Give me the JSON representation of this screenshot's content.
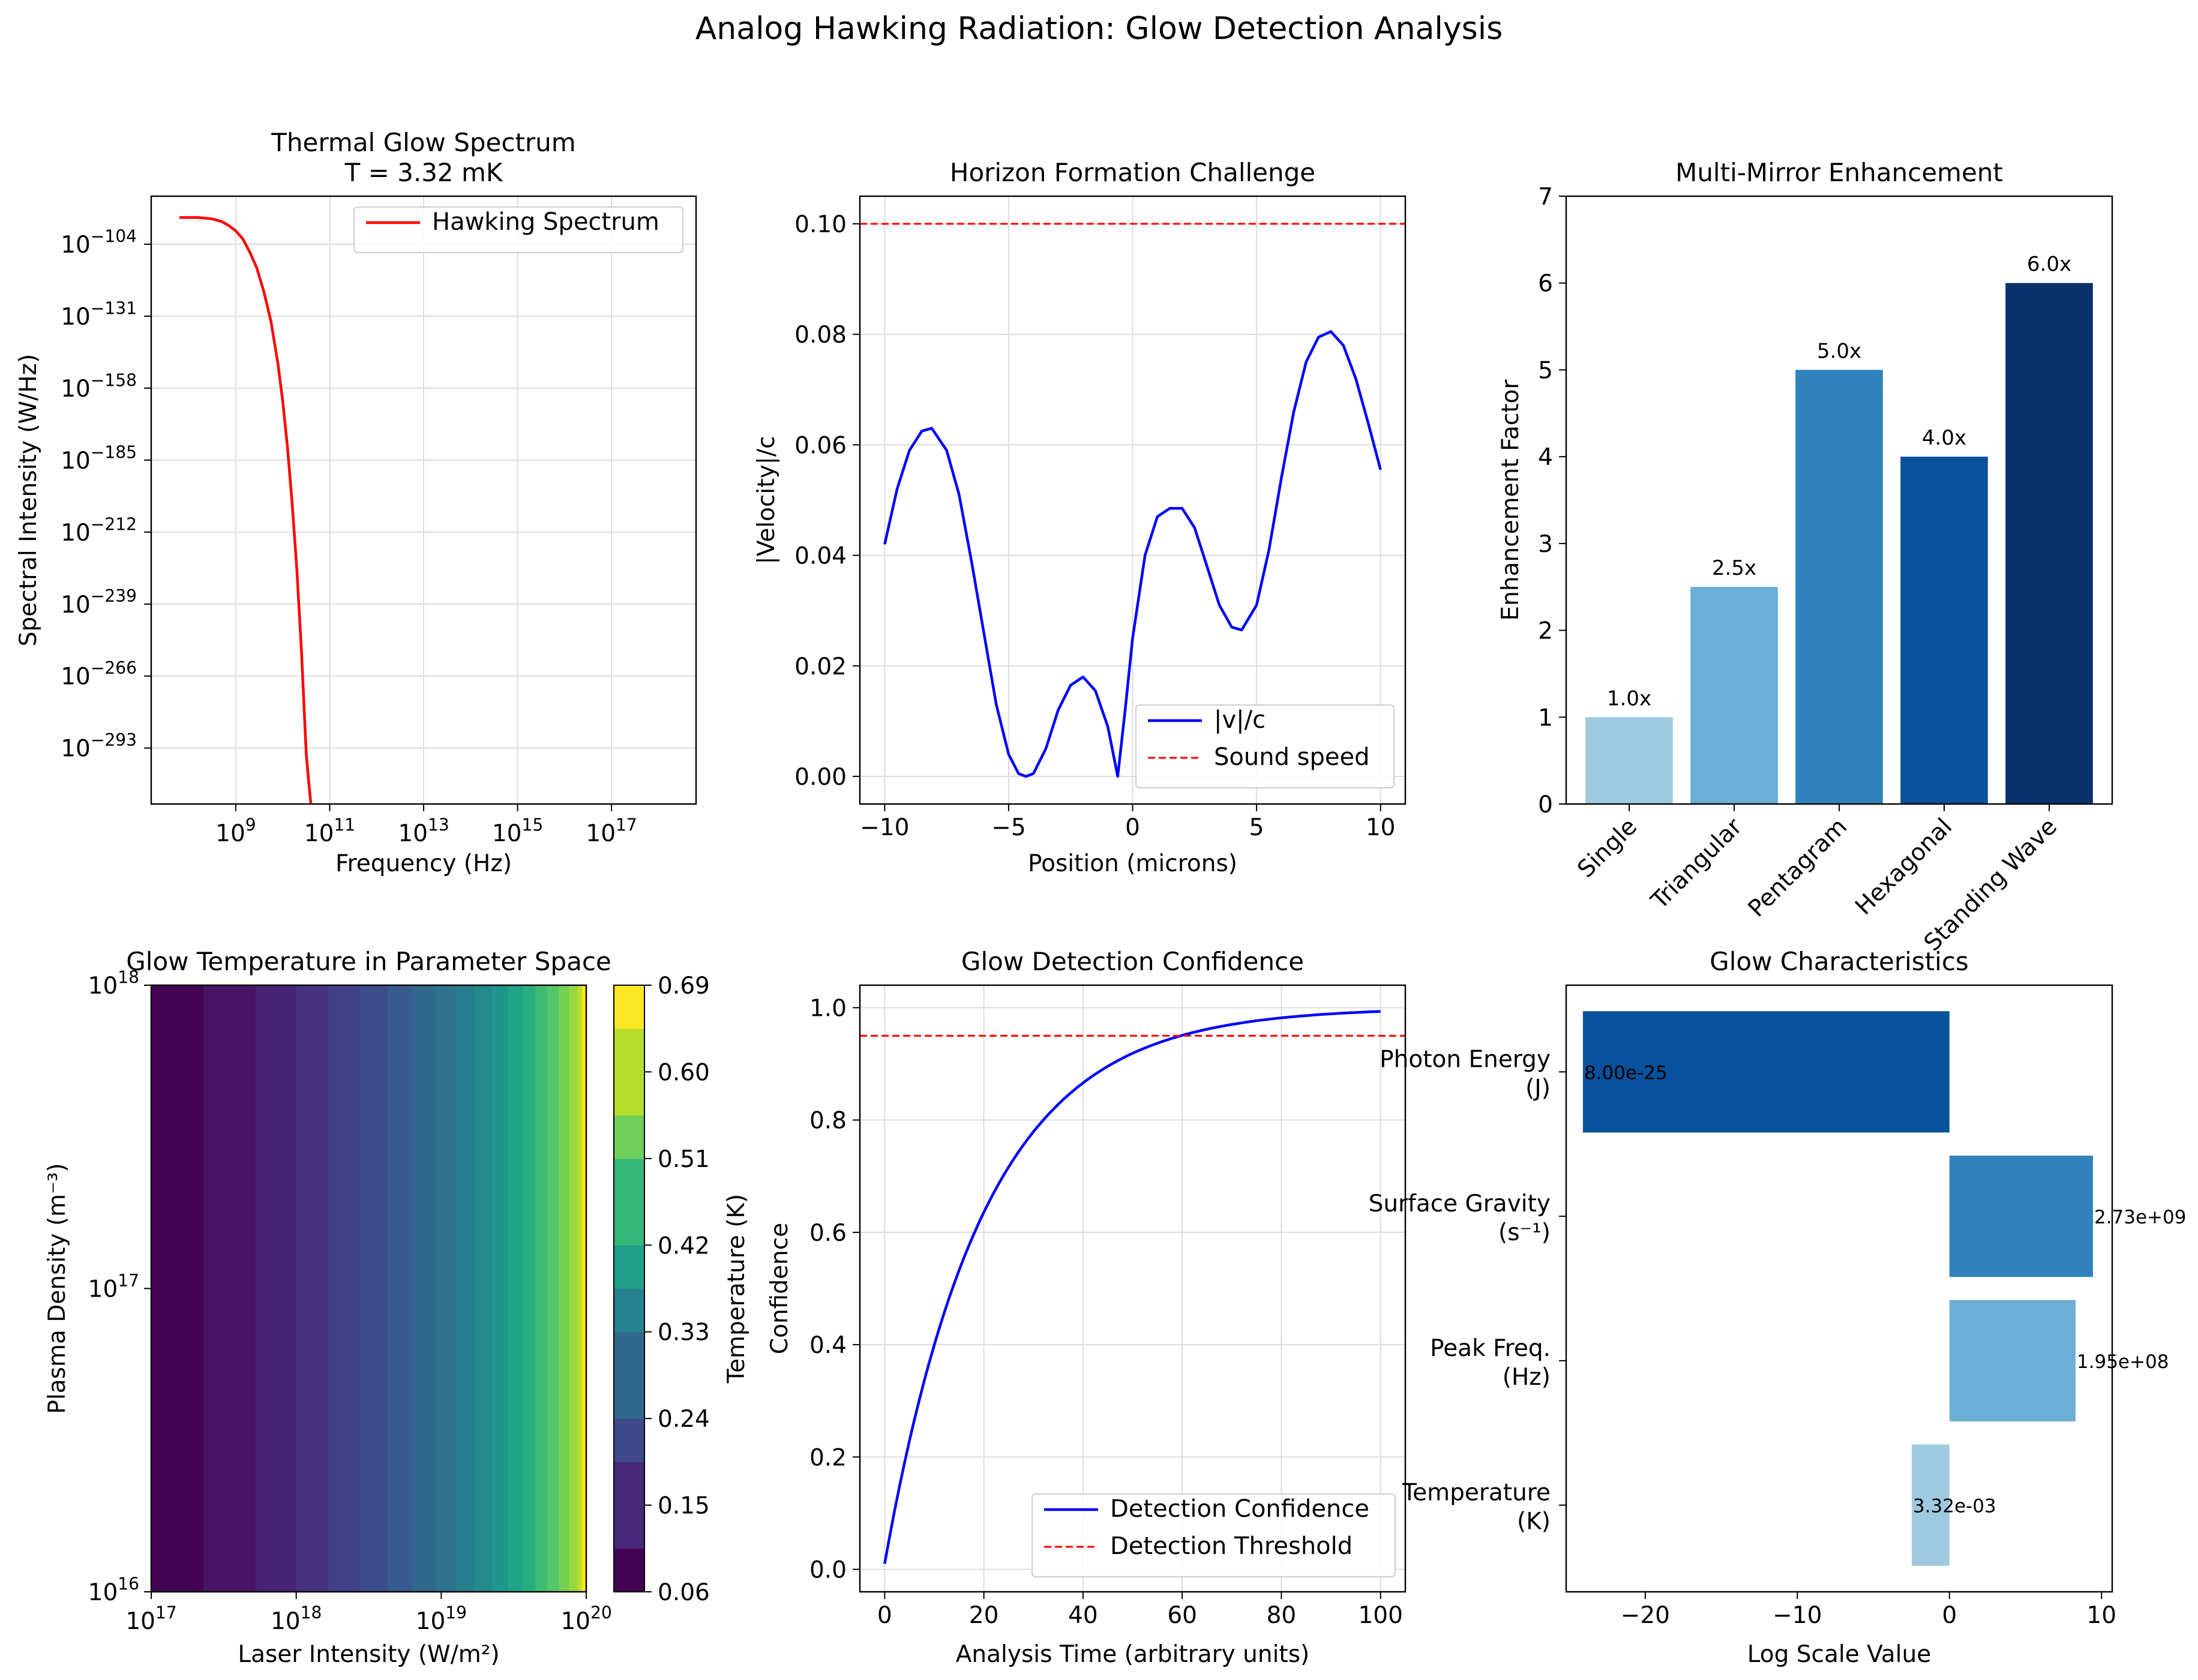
{
  "figure": {
    "suptitle": "Analog Hawking Radiation: Glow Detection Analysis"
  },
  "chart_data": [
    {
      "id": "spectrum",
      "type": "line",
      "title": "Thermal Glow Spectrum",
      "subtitle": "T = 3.32 mK",
      "xlabel": "Frequency (Hz)",
      "ylabel": "Spectral Intensity (W/Hz)",
      "xscale": "log",
      "yscale": "log",
      "xlim_log10": [
        7.2,
        18.8
      ],
      "ylim_log10": [
        -314,
        -86
      ],
      "x_ticks": [
        {
          "base": "10",
          "exp": "9",
          "v": 9
        },
        {
          "base": "10",
          "exp": "11",
          "v": 11
        },
        {
          "base": "10",
          "exp": "13",
          "v": 13
        },
        {
          "base": "10",
          "exp": "15",
          "v": 15
        },
        {
          "base": "10",
          "exp": "17",
          "v": 17
        }
      ],
      "y_ticks": [
        {
          "base": "10",
          "exp": "−104",
          "v": -104
        },
        {
          "base": "10",
          "exp": "−131",
          "v": -131
        },
        {
          "base": "10",
          "exp": "−158",
          "v": -158
        },
        {
          "base": "10",
          "exp": "−185",
          "v": -185
        },
        {
          "base": "10",
          "exp": "−212",
          "v": -212
        },
        {
          "base": "10",
          "exp": "−239",
          "v": -239
        },
        {
          "base": "10",
          "exp": "−266",
          "v": -266
        },
        {
          "base": "10",
          "exp": "−293",
          "v": -293
        }
      ],
      "grid": true,
      "legend": "upper right",
      "series": [
        {
          "name": "Hawking Spectrum",
          "color": "#ff0000",
          "log10_x": [
            7.8,
            8.2,
            8.5,
            8.7,
            8.85,
            9.0,
            9.15,
            9.3,
            9.45,
            9.6,
            9.75,
            9.9,
            10.0,
            10.1,
            10.2,
            10.3,
            10.4,
            10.5,
            10.55,
            10.6
          ],
          "log10_y": [
            -94,
            -94,
            -94.5,
            -95.5,
            -97,
            -99,
            -102,
            -107,
            -113,
            -122,
            -133,
            -149,
            -163,
            -180,
            -201,
            -226,
            -257,
            -295,
            -305,
            -314
          ]
        }
      ]
    },
    {
      "id": "horizon",
      "type": "line",
      "title": "Horizon Formation Challenge",
      "xlabel": "Position (microns)",
      "ylabel": "|Velocity|/c",
      "xlim": [
        -11,
        11
      ],
      "ylim": [
        -0.005,
        0.105
      ],
      "x_ticks": [
        {
          "label": "−10",
          "v": -10
        },
        {
          "label": "−5",
          "v": -5
        },
        {
          "label": "0",
          "v": 0
        },
        {
          "label": "5",
          "v": 5
        },
        {
          "label": "10",
          "v": 10
        }
      ],
      "y_ticks": [
        {
          "label": "0.00",
          "v": 0
        },
        {
          "label": "0.02",
          "v": 0.02
        },
        {
          "label": "0.04",
          "v": 0.04
        },
        {
          "label": "0.06",
          "v": 0.06
        },
        {
          "label": "0.08",
          "v": 0.08
        },
        {
          "label": "0.10",
          "v": 0.1
        }
      ],
      "grid": true,
      "legend": "lower right",
      "series": [
        {
          "name": "|v|/c",
          "color": "#0000ff",
          "style": "solid",
          "x": [
            -10,
            -9.5,
            -9,
            -8.5,
            -8.1,
            -7.5,
            -7,
            -6.5,
            -6,
            -5.5,
            -5,
            -4.6,
            -4.3,
            -4.0,
            -3.5,
            -3,
            -2.5,
            -2,
            -1.5,
            -1.0,
            -0.6,
            -0.3,
            0,
            0.5,
            1,
            1.5,
            2,
            2.5,
            3,
            3.5,
            4,
            4.4,
            5,
            5.5,
            6,
            6.5,
            7,
            7.5,
            8,
            8.5,
            9,
            9.5,
            10
          ],
          "y": [
            0.042,
            0.052,
            0.059,
            0.0625,
            0.063,
            0.059,
            0.051,
            0.039,
            0.026,
            0.013,
            0.004,
            0.0005,
            0.0,
            0.0005,
            0.005,
            0.012,
            0.0165,
            0.018,
            0.0155,
            0.009,
            0.0,
            0.012,
            0.025,
            0.04,
            0.047,
            0.0485,
            0.0485,
            0.045,
            0.038,
            0.031,
            0.027,
            0.0265,
            0.031,
            0.041,
            0.054,
            0.066,
            0.075,
            0.0795,
            0.0805,
            0.078,
            0.072,
            0.064,
            0.0555
          ]
        },
        {
          "name": "Sound speed",
          "color": "#ff0000",
          "style": "dashed",
          "hline": 0.1
        }
      ]
    },
    {
      "id": "mirror",
      "type": "bar",
      "title": "Multi-Mirror Enhancement",
      "ylabel": "Enhancement Factor",
      "ylim": [
        0,
        7
      ],
      "y_ticks": [
        0,
        1,
        2,
        3,
        4,
        5,
        6,
        7
      ],
      "categories": [
        "Single",
        "Triangular",
        "Pentagram",
        "Hexagonal",
        "Standing Wave"
      ],
      "values": [
        1.0,
        2.5,
        5.0,
        4.0,
        6.0
      ],
      "labels": [
        "1.0x",
        "2.5x",
        "5.0x",
        "4.0x",
        "6.0x"
      ],
      "colors": [
        "#9ecae1",
        "#6baed6",
        "#3182bd",
        "#08519c",
        "#08306b"
      ]
    },
    {
      "id": "heatmap",
      "type": "heatmap",
      "title": "Glow Temperature in Parameter Space",
      "xlabel": "Laser Intensity (W/m²)",
      "ylabel": "Plasma Density (m⁻³)",
      "colorbar_label": "Temperature (K)",
      "xscale": "log",
      "yscale": "log",
      "xlim_log10": [
        17,
        20
      ],
      "ylim_log10": [
        16,
        18
      ],
      "x_ticks": [
        {
          "base": "10",
          "exp": "17",
          "v": 17
        },
        {
          "base": "10",
          "exp": "18",
          "v": 18
        },
        {
          "base": "10",
          "exp": "19",
          "v": 19
        },
        {
          "base": "10",
          "exp": "20",
          "v": 20
        }
      ],
      "y_ticks": [
        {
          "base": "10",
          "exp": "16",
          "v": 16
        },
        {
          "base": "10",
          "exp": "17",
          "v": 17
        },
        {
          "base": "10",
          "exp": "18",
          "v": 18
        }
      ],
      "colorbar_ticks": [
        "0.06",
        "0.15",
        "0.24",
        "0.33",
        "0.42",
        "0.51",
        "0.60",
        "0.69"
      ],
      "colorbar_range": [
        0.06,
        0.69
      ],
      "columns_log10_x": [
        17.0,
        17.36,
        17.72,
        18.0,
        18.22,
        18.44,
        18.63,
        18.8,
        18.96,
        19.1,
        19.23,
        19.35,
        19.46,
        19.56,
        19.65,
        19.73,
        19.81,
        19.88,
        19.94,
        20.0
      ],
      "column_colors": [
        "#440154",
        "#471365",
        "#482374",
        "#46337f",
        "#424086",
        "#3b4e8a",
        "#365c8d",
        "#31688e",
        "#2c738e",
        "#277f8e",
        "#238a8d",
        "#1f968b",
        "#20a386",
        "#29af7f",
        "#3dbc74",
        "#56c667",
        "#75d054",
        "#95d840",
        "#bade28",
        "#dde318"
      ]
    },
    {
      "id": "confidence",
      "type": "line",
      "title": "Glow Detection Confidence",
      "xlabel": "Analysis Time (arbitrary units)",
      "ylabel": "Confidence",
      "xlim": [
        -5,
        105
      ],
      "ylim": [
        -0.04,
        1.04
      ],
      "x_ticks": [
        0,
        20,
        40,
        60,
        80,
        100
      ],
      "y_ticks": [
        "0.0",
        "0.2",
        "0.4",
        "0.6",
        "0.8",
        "1.0"
      ],
      "grid": true,
      "legend": "lower right",
      "series": [
        {
          "name": "Detection Confidence",
          "color": "#0000ff",
          "style": "solid",
          "model": "1 - exp(-t/20)"
        },
        {
          "name": "Detection Threshold",
          "color": "#ff0000",
          "style": "dashed",
          "hline": 0.95
        }
      ]
    },
    {
      "id": "glow",
      "type": "bar",
      "orientation": "horizontal",
      "title": "Glow Characteristics",
      "xlabel": "Log Scale Value",
      "xlim": [
        -25.2,
        10.7
      ],
      "x_ticks": [
        {
          "label": "−20",
          "v": -20
        },
        {
          "label": "−10",
          "v": -10
        },
        {
          "label": "0",
          "v": 0
        },
        {
          "label": "10",
          "v": 10
        }
      ],
      "categories": [
        {
          "line1": "Photon Energy",
          "line2": "(J)"
        },
        {
          "line1": "Surface Gravity",
          "line2": "(s⁻¹)"
        },
        {
          "line1": "Peak Freq.",
          "line2": "(Hz)"
        },
        {
          "line1": "Temperature",
          "line2": "(K)"
        }
      ],
      "values": [
        -24.097,
        9.436,
        8.29,
        -2.479
      ],
      "labels": [
        "8.00e-25",
        "2.73e+09",
        "1.95e+08",
        "3.32e-03"
      ],
      "colors": [
        "#08519c",
        "#3182bd",
        "#6baed6",
        "#9ecae1"
      ]
    }
  ]
}
